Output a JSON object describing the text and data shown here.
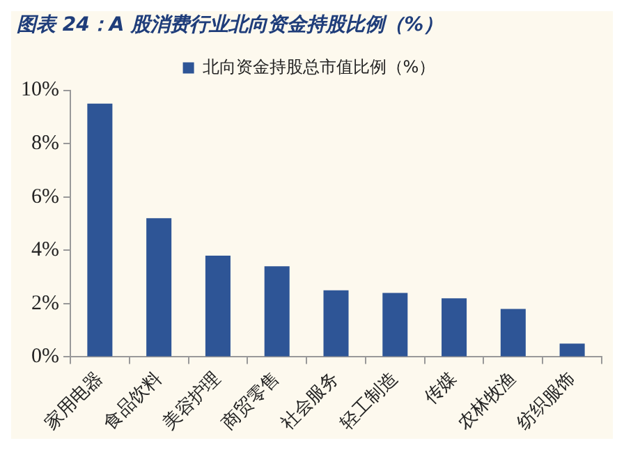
{
  "chart_data": {
    "type": "bar",
    "title": "图表 24：A 股消费行业北向资金持股比例（%）",
    "categories": [
      "家用电器",
      "食品饮料",
      "美容护理",
      "商贸零售",
      "社会服务",
      "轻工制造",
      "传媒",
      "农林牧渔",
      "纺织服饰"
    ],
    "series": [
      {
        "name": "北向资金持股总市值比例（%）",
        "color": "#2e5596",
        "values": [
          9.5,
          5.2,
          3.8,
          3.4,
          2.5,
          2.4,
          2.2,
          1.8,
          0.5
        ]
      }
    ],
    "ylim": [
      0,
      10
    ],
    "yticks": [
      {
        "value": 0,
        "label": "0%"
      },
      {
        "value": 2,
        "label": "2%"
      },
      {
        "value": 4,
        "label": "4%"
      },
      {
        "value": 6,
        "label": "6%"
      },
      {
        "value": 8,
        "label": "8%"
      },
      {
        "value": 10,
        "label": "10%"
      }
    ],
    "grid": false,
    "legend": "top"
  }
}
